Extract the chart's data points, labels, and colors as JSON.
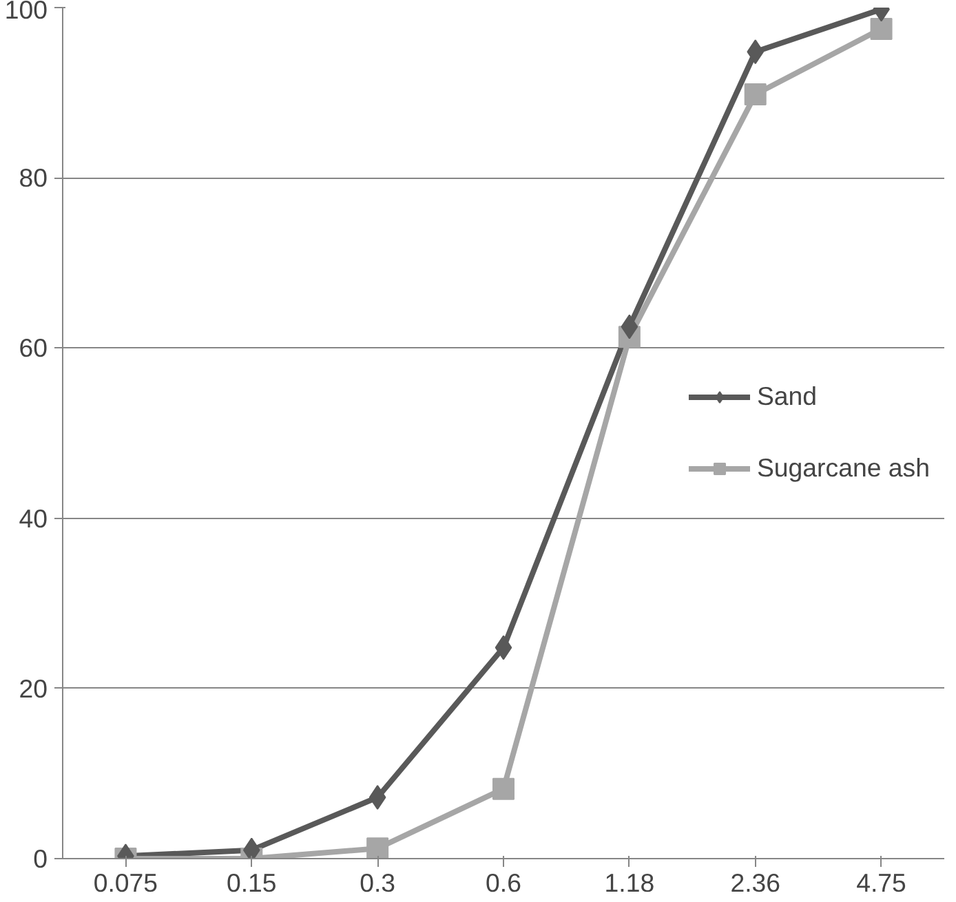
{
  "chart_data": {
    "type": "line",
    "categories": [
      "0.075",
      "0.15",
      "0.3",
      "0.6",
      "1.18",
      "2.36",
      "4.75"
    ],
    "series": [
      {
        "name": "Sand",
        "color": "#595959",
        "marker": "diamond",
        "values": [
          0.3,
          1,
          7.2,
          24.8,
          62.5,
          94.8,
          99.8
        ]
      },
      {
        "name": "Sugarcane ash",
        "color": "#a6a6a6",
        "marker": "square",
        "values": [
          0,
          0,
          1.2,
          8.2,
          61.3,
          89.8,
          97.5
        ]
      }
    ],
    "ylim": [
      0,
      100
    ],
    "yticks": [
      0,
      20,
      40,
      60,
      80,
      100
    ],
    "grid": "y",
    "legend": "right",
    "line_style": "solid"
  }
}
